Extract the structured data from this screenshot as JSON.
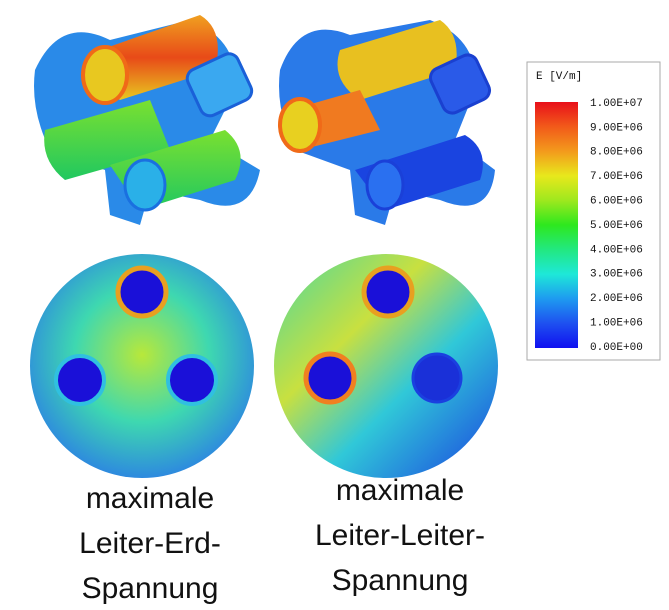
{
  "legend": {
    "title": "E [V/m]",
    "labels": [
      "1.00E+07",
      "9.00E+06",
      "8.00E+06",
      "7.00E+06",
      "6.00E+06",
      "5.00E+06",
      "4.00E+06",
      "3.00E+06",
      "2.00E+06",
      "1.00E+06",
      "0.00E+00"
    ]
  },
  "captions": [
    {
      "lines": [
        "maximale",
        "Leiter-Erd-",
        "Spannung"
      ]
    },
    {
      "lines": [
        "maximale",
        "Leiter-Leiter-",
        "Spannung"
      ]
    }
  ]
}
